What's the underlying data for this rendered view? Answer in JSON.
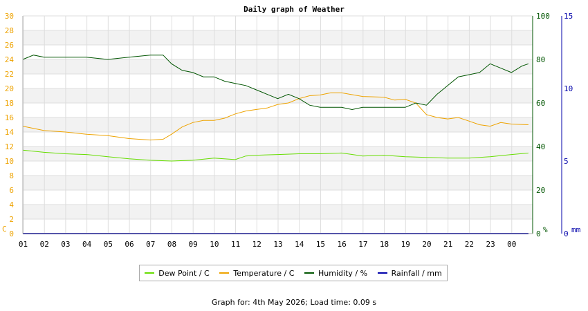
{
  "chart_data": {
    "type": "line",
    "title": "Daily graph of Weather",
    "x_ticks": [
      "01",
      "02",
      "03",
      "04",
      "05",
      "06",
      "07",
      "08",
      "09",
      "10",
      "11",
      "12",
      "13",
      "14",
      "15",
      "16",
      "17",
      "18",
      "19",
      "20",
      "21",
      "22",
      "23",
      "00"
    ],
    "left_axis": {
      "unit": "C",
      "range": [
        0,
        30
      ],
      "ticks": [
        0,
        2,
        4,
        6,
        8,
        10,
        12,
        14,
        16,
        18,
        20,
        22,
        24,
        26,
        28,
        30
      ]
    },
    "left_axis_secondary_ticks": [
      0,
      10,
      20,
      30
    ],
    "right_axis_1": {
      "unit": "%",
      "range": [
        0,
        100
      ],
      "ticks": [
        0,
        20,
        40,
        60,
        80,
        100
      ]
    },
    "right_axis_2": {
      "unit": "mm",
      "range": [
        0,
        15
      ],
      "ticks": [
        0,
        5,
        10,
        15
      ]
    },
    "grid": true,
    "legend_position": "bottom",
    "series": [
      {
        "name": "Dew Point / C",
        "axis": "left",
        "color": "#66dd00",
        "x": [
          0.0,
          1.0,
          2.0,
          3.0,
          4.0,
          5.0,
          6.0,
          7.0,
          8.0,
          9.0,
          10.0,
          10.5,
          11.0,
          12.0,
          13.0,
          14.0,
          15.0,
          16.0,
          17.0,
          18.0,
          19.0,
          20.0,
          21.0,
          22.0,
          23.0,
          23.8
        ],
        "y": [
          11.5,
          11.2,
          11.0,
          10.9,
          10.6,
          10.3,
          10.1,
          10.0,
          10.1,
          10.4,
          10.2,
          10.7,
          10.8,
          10.9,
          11.0,
          11.0,
          11.1,
          10.7,
          10.8,
          10.6,
          10.5,
          10.4,
          10.4,
          10.6,
          10.9,
          11.1
        ]
      },
      {
        "name": "Temperature / C",
        "axis": "left",
        "color": "#eea300",
        "x": [
          0.0,
          1.0,
          2.0,
          3.0,
          4.0,
          5.0,
          6.0,
          6.6,
          7.0,
          7.5,
          8.0,
          8.5,
          9.0,
          9.5,
          10.0,
          10.5,
          11.0,
          11.5,
          12.0,
          12.5,
          13.0,
          13.5,
          14.0,
          14.5,
          15.0,
          16.0,
          17.0,
          17.5,
          18.0,
          18.5,
          19.0,
          19.5,
          20.0,
          20.5,
          21.0,
          21.5,
          22.0,
          22.5,
          23.0,
          23.8
        ],
        "y": [
          14.8,
          14.2,
          14.0,
          13.7,
          13.5,
          13.1,
          12.9,
          13.0,
          13.7,
          14.7,
          15.3,
          15.6,
          15.6,
          15.9,
          16.5,
          16.9,
          17.1,
          17.3,
          17.8,
          18.0,
          18.6,
          19.0,
          19.1,
          19.4,
          19.4,
          18.9,
          18.8,
          18.4,
          18.5,
          18.0,
          16.4,
          16.0,
          15.8,
          16.0,
          15.5,
          15.0,
          14.8,
          15.3,
          15.1,
          15.0
        ]
      },
      {
        "name": "Humidity / %",
        "axis": "right_1",
        "color": "#005500",
        "x": [
          0.0,
          0.5,
          1.0,
          2.0,
          3.0,
          4.0,
          5.0,
          6.0,
          6.6,
          7.0,
          7.5,
          8.0,
          8.5,
          9.0,
          9.5,
          10.0,
          10.5,
          11.0,
          11.5,
          12.0,
          12.5,
          13.0,
          13.5,
          14.0,
          14.5,
          15.0,
          15.5,
          16.0,
          16.5,
          17.0,
          17.5,
          18.0,
          18.5,
          19.0,
          19.5,
          20.0,
          20.5,
          21.0,
          21.5,
          22.0,
          22.5,
          23.0,
          23.5,
          23.8
        ],
        "y": [
          80,
          82,
          81,
          81,
          81,
          80,
          81,
          82,
          82,
          78,
          75,
          74,
          72,
          72,
          70,
          69,
          68,
          66,
          64,
          62,
          64,
          62,
          59,
          58,
          58,
          58,
          57,
          58,
          58,
          58,
          58,
          58,
          60,
          59,
          64,
          68,
          72,
          73,
          74,
          78,
          76,
          74,
          77,
          78
        ]
      },
      {
        "name": "Rainfall / mm",
        "axis": "right_2",
        "color": "#0000aa",
        "x": [
          0.0,
          23.8
        ],
        "y": [
          0,
          0
        ]
      }
    ]
  },
  "footer": "Graph for: 4th May 2026; Load time: 0.09 s",
  "colors": {
    "left_axis": "#eea300",
    "right_axis_1": "#005500",
    "right_axis_2": "#0000aa"
  }
}
